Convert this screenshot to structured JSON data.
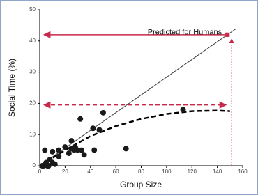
{
  "chart_data": {
    "type": "scatter",
    "x_label": "Group Size",
    "y_label": "Social Time (%)",
    "annotation": "Predicted for Humans",
    "x": [
      2,
      3,
      4,
      5,
      6,
      7,
      8,
      10,
      10,
      12,
      15,
      15,
      20,
      23,
      25,
      25,
      27,
      28,
      30,
      32,
      33,
      35,
      42,
      43,
      47,
      50,
      68,
      113
    ],
    "values": [
      0,
      0,
      5,
      1,
      0,
      0,
      2,
      4.5,
      1,
      0.5,
      3,
      5,
      6,
      4,
      8,
      5.5,
      5,
      6,
      5,
      15,
      5,
      3.5,
      12,
      5,
      11.5,
      17,
      5.5,
      18
    ],
    "color": "#1a1a1a",
    "fit_line": {
      "x": [
        0,
        155
      ],
      "values": [
        0,
        44
      ]
    },
    "curve": {
      "x": [
        0,
        20,
        40,
        60,
        80,
        100,
        120,
        140,
        150
      ],
      "values": [
        0,
        5,
        9.5,
        12.7,
        15,
        16.6,
        17.5,
        17.7,
        17.5
      ]
    },
    "predicted": {
      "x": 148,
      "value": 42
    },
    "dashed_level": 19.5,
    "arrow_color": "#c8284a",
    "xlim": [
      0,
      160
    ],
    "ylim": [
      0,
      50
    ],
    "xticks": [
      0,
      20,
      40,
      60,
      80,
      100,
      120,
      140,
      160
    ],
    "yticks": [
      0,
      10,
      20,
      30,
      40,
      50
    ]
  }
}
